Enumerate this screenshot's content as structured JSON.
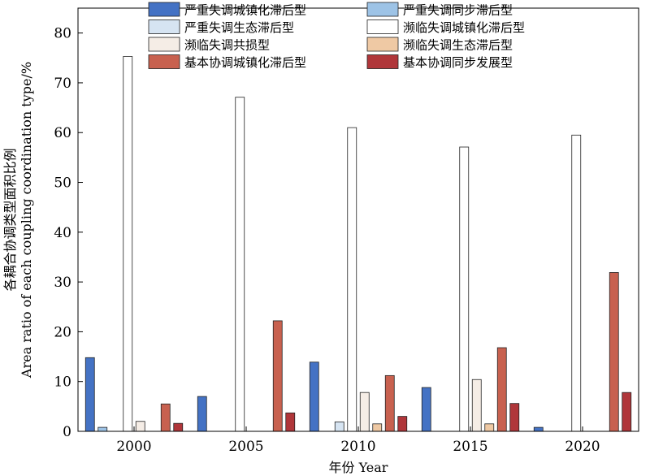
{
  "chart_data": {
    "type": "bar",
    "categories": [
      "2000",
      "2005",
      "2010",
      "2015",
      "2020"
    ],
    "xlabel": "年份 Year",
    "ylabel_line1": "各耦合协调类型面积比例",
    "ylabel_line2": "Area ratio of each coupling coordination type/%",
    "ylim": [
      0,
      85
    ],
    "yticks": [
      0,
      10,
      20,
      30,
      40,
      50,
      60,
      70,
      80
    ],
    "grid": false,
    "legend_position": "top",
    "series": [
      {
        "name": "严重失调城镇化滞后型",
        "color": "#4472C4",
        "values": [
          14.8,
          7.0,
          13.9,
          8.8,
          0.8
        ]
      },
      {
        "name": "严重失调同步滞后型",
        "color": "#9DC3E6",
        "values": [
          0.8,
          0.0,
          0.0,
          0.0,
          0.0
        ]
      },
      {
        "name": "严重失调生态滞后型",
        "color": "#D6E4F2",
        "values": [
          0.0,
          0.0,
          1.9,
          0.0,
          0.0
        ]
      },
      {
        "name": "濒临失调城镇化滞后型",
        "color": "#FFFFFF",
        "values": [
          75.3,
          67.1,
          61.0,
          57.1,
          59.5
        ]
      },
      {
        "name": "濒临失调共损型",
        "color": "#F5EDE6",
        "values": [
          2.0,
          0.0,
          7.8,
          10.4,
          0.0
        ]
      },
      {
        "name": "濒临失调生态滞后型",
        "color": "#EFC9A4",
        "values": [
          0.0,
          0.0,
          1.5,
          1.5,
          0.0
        ]
      },
      {
        "name": "基本协调城镇化滞后型",
        "color": "#C8614F",
        "values": [
          5.5,
          22.2,
          11.2,
          16.8,
          31.9
        ]
      },
      {
        "name": "基本协调同步发展型",
        "color": "#B0363A",
        "values": [
          1.6,
          3.7,
          3.0,
          5.6,
          7.8
        ]
      }
    ]
  }
}
